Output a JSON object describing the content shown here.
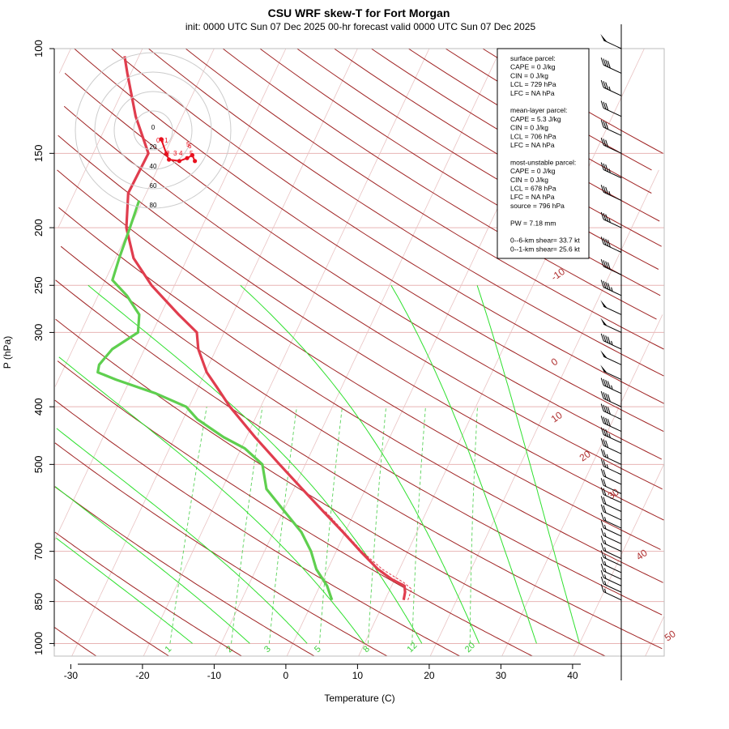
{
  "chart_data": {
    "type": "line",
    "title": "CSU WRF skew-T for Fort Morgan",
    "subtitle": "init: 0000 UTC Sun 07 Dec 2025    00-hr forecast valid 0000 UTC Sun 07 Dec 2025",
    "xlabel": "Temperature (C)",
    "ylabel": "P (hPa)",
    "xlim": [
      -33,
      50
    ],
    "ylim": [
      1050,
      100
    ],
    "x_ticks": [
      "-30",
      "-20",
      "-10",
      "0",
      "10",
      "20",
      "30",
      "40"
    ],
    "y_ticks": [
      "100",
      "150",
      "200",
      "250",
      "300",
      "400",
      "500",
      "700",
      "850",
      "1000"
    ],
    "isotherm_labels": [
      "-10",
      "0",
      "10",
      "20",
      "30",
      "40",
      "50"
    ],
    "mixing_ratio_labels": [
      "1",
      "2",
      "3",
      "5",
      "8",
      "12",
      "20"
    ],
    "series": [
      {
        "name": "",
        "color": "#e03d4e",
        "points": [
          [
            845,
            12.6
          ],
          [
            820,
            12.3
          ],
          [
            800,
            11.8
          ],
          [
            780,
            9.6
          ],
          [
            750,
            7.0
          ],
          [
            700,
            3.4
          ],
          [
            650,
            -0.3
          ],
          [
            600,
            -4.4
          ],
          [
            550,
            -8.8
          ],
          [
            500,
            -13.6
          ],
          [
            450,
            -18.8
          ],
          [
            400,
            -24.3
          ],
          [
            370,
            -27.5
          ],
          [
            350,
            -29.8
          ],
          [
            320,
            -32.5
          ],
          [
            300,
            -33.8
          ],
          [
            280,
            -37.5
          ],
          [
            250,
            -43.2
          ],
          [
            225,
            -47.5
          ],
          [
            200,
            -50.5
          ],
          [
            175,
            -52.5
          ],
          [
            150,
            -52.3
          ],
          [
            130,
            -56.5
          ],
          [
            110,
            -60.5
          ],
          [
            103,
            -62.0
          ]
        ]
      },
      {
        "name": "",
        "color": "#5fcf4f",
        "points": [
          [
            845,
            2.6
          ],
          [
            800,
            1.0
          ],
          [
            750,
            -1.6
          ],
          [
            700,
            -3.5
          ],
          [
            650,
            -6.1
          ],
          [
            600,
            -9.8
          ],
          [
            550,
            -13.8
          ],
          [
            500,
            -16.0
          ],
          [
            470,
            -19.5
          ],
          [
            450,
            -23.2
          ],
          [
            420,
            -28.0
          ],
          [
            400,
            -30.4
          ],
          [
            380,
            -35.5
          ],
          [
            360,
            -42.0
          ],
          [
            350,
            -45.0
          ],
          [
            340,
            -45.3
          ],
          [
            320,
            -44.5
          ],
          [
            300,
            -42.0
          ],
          [
            280,
            -43.0
          ],
          [
            260,
            -46.0
          ],
          [
            245,
            -49.0
          ],
          [
            225,
            -49.5
          ],
          [
            200,
            -50.0
          ],
          [
            180,
            -50.5
          ]
        ]
      },
      {
        "name": "",
        "color": "#e03d4e",
        "dashed": true,
        "points": [
          [
            845,
            13.2
          ],
          [
            810,
            13.0
          ],
          [
            790,
            11.5
          ],
          [
            750,
            7.6
          ],
          [
            700,
            3.6
          ],
          [
            650,
            -0.1
          ],
          [
            600,
            -4.1
          ]
        ]
      }
    ],
    "hodograph": {
      "ring_labels": [
        "0",
        "20",
        "40",
        "60",
        "80"
      ],
      "point_labels": [
        "0",
        "0",
        "1",
        "2",
        "3",
        "4",
        "5",
        "6",
        "5"
      ],
      "color": "#e8101e",
      "points": [
        [
          -5,
          4
        ],
        [
          -3,
          -6
        ],
        [
          -2,
          -10
        ],
        [
          2,
          -11
        ],
        [
          5,
          -9
        ],
        [
          7,
          -7
        ],
        [
          8,
          -11
        ]
      ]
    },
    "wind_barbs": {
      "levels": [
        100,
        110,
        120,
        130,
        140,
        150,
        165,
        180,
        200,
        220,
        240,
        260,
        280,
        300,
        320,
        340,
        360,
        380,
        400,
        420,
        440,
        460,
        480,
        500,
        520,
        540,
        560,
        580,
        600,
        620,
        640,
        660,
        680,
        700,
        720,
        740,
        760,
        780,
        800,
        820,
        845
      ],
      "speeds_kt": [
        50,
        40,
        35,
        30,
        30,
        30,
        35,
        35,
        35,
        40,
        40,
        45,
        50,
        50,
        45,
        50,
        50,
        45,
        40,
        40,
        40,
        35,
        30,
        25,
        25,
        20,
        20,
        20,
        20,
        20,
        15,
        15,
        15,
        15,
        15,
        15,
        15,
        15,
        15,
        15,
        15
      ]
    },
    "parcel_info": [
      "surface parcel:",
      "CAPE = 0 J/kg",
      "CIN = 0 J/kg",
      "LCL = 729 hPa",
      "LFC = NA hPa",
      "",
      "mean-layer parcel:",
      "CAPE = 5.3 J/kg",
      "CIN = 0 J/kg",
      "LCL = 706 hPa",
      "LFC = NA hPa",
      "",
      "most-unstable parcel:",
      "CAPE = 0 J/kg",
      "CIN = 0 J/kg",
      "LCL = 678 hPa",
      "LFC = NA hPa",
      "source = 796 hPa",
      "",
      "PW =  7.18 mm",
      "",
      "0--6-km shear= 33.7 kt",
      "0--1-km shear= 25.6 kt"
    ]
  }
}
